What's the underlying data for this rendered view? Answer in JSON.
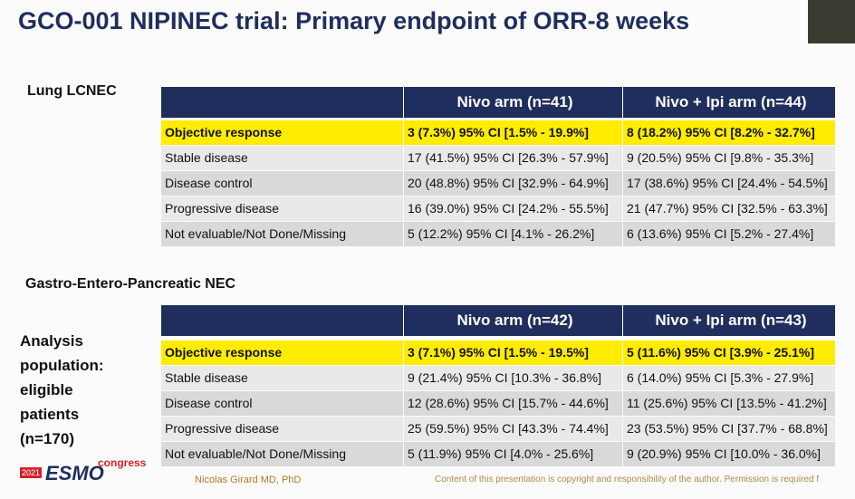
{
  "title": "GCO-001 NIPINEC trial: Primary endpoint of ORR-8 weeks",
  "sections": [
    {
      "label": "Lung LCNEC",
      "table": {
        "columns": [
          "Nivo arm (n=41)",
          "Nivo + Ipi arm (n=44)"
        ],
        "rows": [
          [
            "Objective response",
            "3 (7.3%) 95% CI [1.5% - 19.9%]",
            "8 (18.2%) 95% CI [8.2% - 32.7%]"
          ],
          [
            "Stable disease",
            "17 (41.5%) 95% CI [26.3% - 57.9%]",
            "9 (20.5%) 95% CI [9.8% - 35.3%]"
          ],
          [
            "Disease control",
            "20 (48.8%) 95% CI [32.9% - 64.9%]",
            "17 (38.6%) 95% CI [24.4% - 54.5%]"
          ],
          [
            "Progressive disease",
            "16 (39.0%) 95% CI [24.2% - 55.5%]",
            "21 (47.7%) 95% CI [32.5% - 63.3%]"
          ],
          [
            "Not evaluable/Not Done/Missing",
            "5 (12.2%) 95% CI [4.1% - 26.2%]",
            "6 (13.6%) 95% CI [5.2% - 27.4%]"
          ]
        ]
      }
    },
    {
      "label": "Gastro-Entero-Pancreatic NEC",
      "table": {
        "columns": [
          "Nivo arm (n=42)",
          "Nivo + Ipi arm (n=43)"
        ],
        "rows": [
          [
            "Objective response",
            "3 (7.1%) 95% CI [1.5% - 19.5%]",
            "5 (11.6%) 95% CI [3.9% - 25.1%]"
          ],
          [
            "Stable disease",
            "9 (21.4%) 95% CI [10.3% - 36.8%]",
            "6 (14.0%) 95% CI [5.3% - 27.9%]"
          ],
          [
            "Disease control",
            "12 (28.6%) 95% CI [15.7% - 44.6%]",
            "11 (25.6%) 95% CI [13.5% - 41.2%]"
          ],
          [
            "Progressive disease",
            "25 (59.5%) 95% CI [43.3% - 74.4%]",
            "23 (53.5%) 95% CI [37.7% - 68.8%]"
          ],
          [
            "Not evaluable/Not Done/Missing",
            "5 (11.9%) 95% CI [4.0% - 25.6%]",
            "9 (20.9%) 95% CI [10.0% - 36.0%]"
          ]
        ]
      }
    }
  ],
  "side_note": [
    "Analysis",
    "population:",
    "eligible",
    "patients",
    "(n=170)"
  ],
  "footer": {
    "logo_year": "2021",
    "logo_text": "ESMO",
    "logo_sup": "congress",
    "author": "Nicolas Girard MD, PhD",
    "copyright": "Content of this presentation is copyright and responsibility of the author. Permission is required f"
  }
}
